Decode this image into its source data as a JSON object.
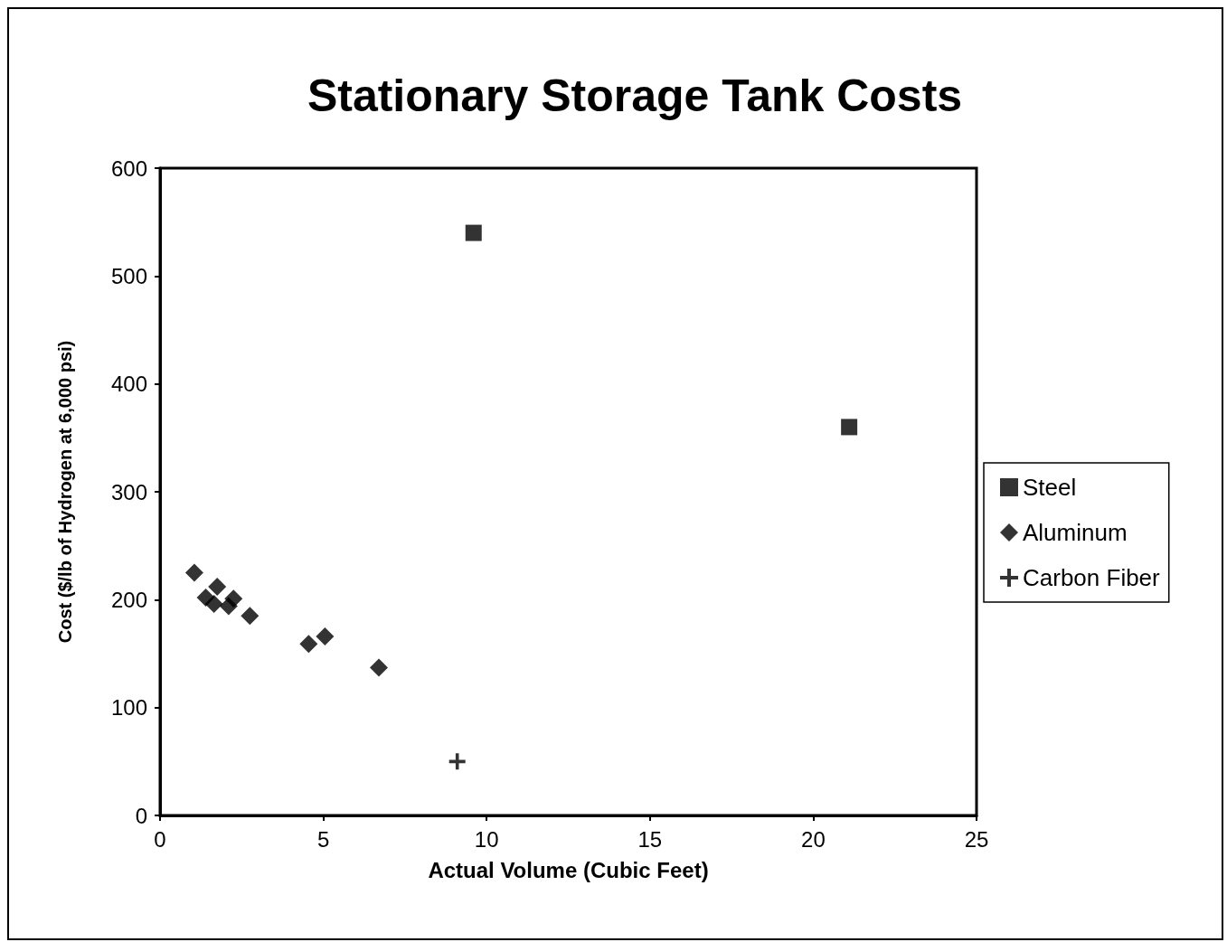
{
  "chart_data": {
    "type": "scatter",
    "title": "Stationary Storage Tank Costs",
    "xlabel": "Actual Volume (Cubic Feet)",
    "ylabel": "Cost ($/lb of Hydrogen at 6,000 psi)",
    "xlim": [
      0,
      25
    ],
    "xticks": [
      0,
      5,
      10,
      15,
      20,
      25
    ],
    "ylim": [
      0,
      600
    ],
    "yticks": [
      0,
      100,
      200,
      300,
      400,
      500,
      600
    ],
    "grid": false,
    "legend": "right",
    "series": [
      {
        "name": "Steel",
        "color": "#000000",
        "marker": "square",
        "x": [
          9.6,
          21.1
        ],
        "values": [
          540,
          360
        ]
      },
      {
        "name": "Aluminum",
        "color": "#000000",
        "marker": "diamond",
        "x": [
          1.05,
          1.4,
          1.75,
          1.65,
          2.1,
          2.25,
          2.75,
          4.55,
          5.05,
          6.7
        ],
        "values": [
          225,
          202,
          212,
          196,
          194,
          201,
          185,
          159,
          166,
          137
        ]
      },
      {
        "name": "Carbon Fiber",
        "color": "#000000",
        "marker": "cross",
        "x": [
          9.1
        ],
        "values": [
          50
        ]
      }
    ]
  }
}
